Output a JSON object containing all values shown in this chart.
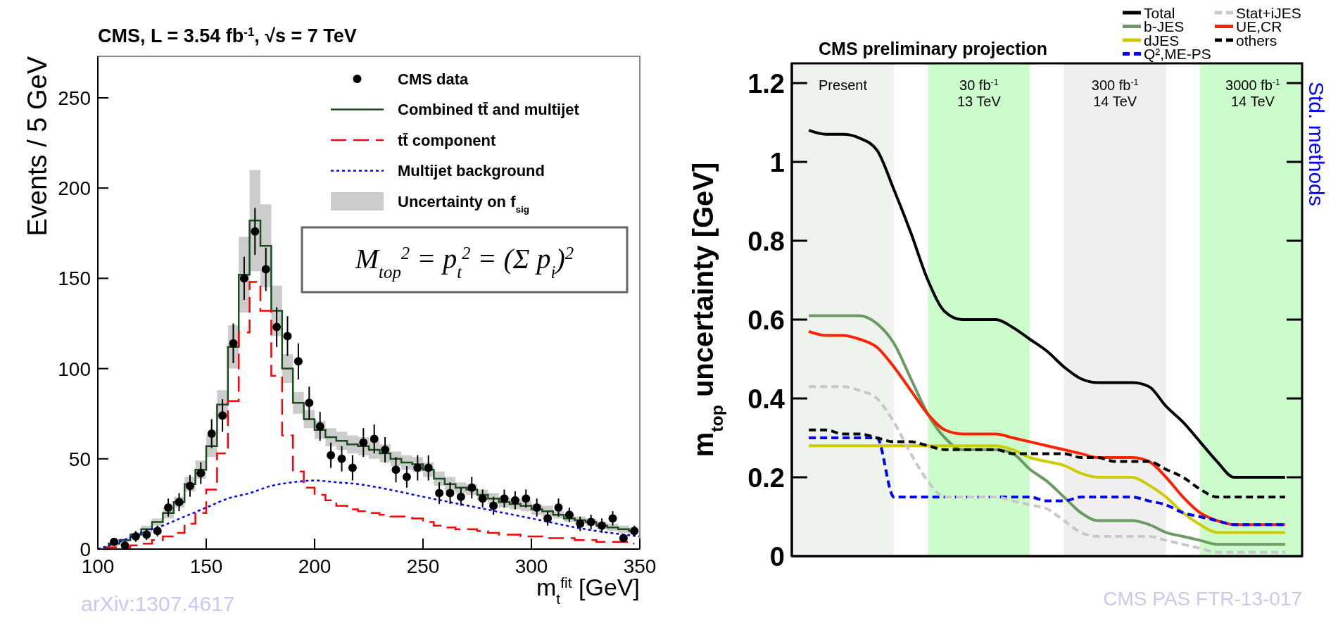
{
  "chart_data": [
    {
      "type": "scatter",
      "title": "CMS, L = 3.54 fb$^{-1}$, √s = 7 TeV",
      "xlabel": "m$_{t}$$^{fit}$ [GeV]",
      "ylabel": "Events / 5 GeV",
      "xlim": [
        100,
        350
      ],
      "xticks": [
        100,
        150,
        200,
        250,
        300,
        350
      ],
      "ylim": [
        0,
        273
      ],
      "yticks": [
        0,
        50,
        100,
        150,
        200,
        250
      ],
      "legend": "top right",
      "annotations": [
        "M$_{top}$$^{2}$ = p$_{t}$$^{2}$ = (Σ p$_{i}$)$^{2}$",
        "arXiv:1307.4617",
        "Uncertainty on f$_{sig}$"
      ],
      "series": [
        {
          "name": "CMS data",
          "color": "#000000",
          "marker": "circle",
          "x": [
            107.5,
            112.5,
            117.5,
            122.5,
            127.5,
            132.5,
            137.5,
            142.5,
            147.5,
            152.5,
            157.5,
            162.5,
            167.5,
            172.5,
            177.5,
            182.5,
            187.5,
            192.5,
            197.5,
            202.5,
            207.5,
            212.5,
            217.5,
            222.5,
            227.5,
            232.5,
            237.5,
            242.5,
            247.5,
            252.5,
            257.5,
            262.5,
            267.5,
            272.5,
            277.5,
            282.5,
            287.5,
            292.5,
            297.5,
            302.5,
            307.5,
            312.5,
            317.5,
            322.5,
            327.5,
            332.5,
            337.5,
            342.5,
            347.5
          ],
          "values": [
            4,
            2,
            7,
            8,
            10,
            23,
            26,
            35,
            42,
            64,
            74,
            114,
            150,
            176,
            155,
            123,
            118,
            104,
            81,
            68,
            52,
            50,
            45,
            59,
            61,
            55,
            44,
            40,
            45,
            45,
            31,
            31,
            29,
            34,
            28,
            24,
            28,
            27,
            28,
            23,
            17,
            23,
            19,
            14,
            15,
            13,
            17,
            6,
            10
          ],
          "errors": [
            2,
            1,
            3,
            3,
            3,
            5,
            5,
            6,
            6,
            8,
            9,
            11,
            12,
            13,
            12,
            11,
            11,
            10,
            9,
            8,
            7,
            7,
            7,
            8,
            8,
            7,
            7,
            6,
            7,
            7,
            6,
            6,
            5,
            6,
            5,
            5,
            5,
            5,
            5,
            5,
            4,
            5,
            4,
            4,
            4,
            4,
            4,
            2,
            3
          ]
        },
        {
          "name": "Combined tt̄ and multijet",
          "type": "step",
          "color": "#1a4d1a",
          "x": [
            102.5,
            107.5,
            112.5,
            117.5,
            122.5,
            127.5,
            132.5,
            137.5,
            142.5,
            147.5,
            152.5,
            157.5,
            162.5,
            167.5,
            172.5,
            177.5,
            182.5,
            187.5,
            192.5,
            197.5,
            202.5,
            207.5,
            212.5,
            217.5,
            222.5,
            227.5,
            232.5,
            237.5,
            242.5,
            247.5,
            252.5,
            257.5,
            262.5,
            267.5,
            272.5,
            277.5,
            282.5,
            287.5,
            292.5,
            297.5,
            302.5,
            307.5,
            312.5,
            317.5,
            322.5,
            327.5,
            332.5,
            337.5,
            342.5,
            347.5
          ],
          "values": [
            1,
            3,
            5,
            8,
            11,
            15,
            20,
            26,
            36,
            44,
            57,
            80,
            112,
            152,
            182,
            168,
            132,
            100,
            81,
            72,
            66,
            62,
            60,
            58,
            57,
            55,
            53,
            50,
            48,
            47,
            44,
            39,
            36,
            34,
            33,
            30,
            28,
            26,
            25,
            24,
            22,
            21,
            19,
            17,
            16,
            15,
            13,
            12,
            11,
            10
          ],
          "lower": [
            1,
            2,
            4,
            7,
            9,
            13,
            17,
            23,
            32,
            39,
            51,
            72,
            100,
            131,
            154,
            145,
            118,
            92,
            75,
            67,
            61,
            57,
            55,
            53,
            52,
            50,
            48,
            46,
            44,
            43,
            40,
            35,
            32,
            31,
            30,
            27,
            25,
            23,
            22,
            21,
            19,
            18,
            17,
            15,
            14,
            13,
            11,
            10,
            9,
            8
          ],
          "upper": [
            1,
            4,
            6,
            9,
            13,
            17,
            23,
            29,
            40,
            49,
            63,
            88,
            124,
            173,
            210,
            191,
            146,
            108,
            87,
            77,
            71,
            67,
            65,
            63,
            62,
            60,
            58,
            54,
            52,
            51,
            48,
            43,
            40,
            37,
            36,
            33,
            31,
            29,
            28,
            27,
            25,
            24,
            21,
            19,
            18,
            17,
            15,
            14,
            13,
            12
          ]
        },
        {
          "name": "tt̄ component",
          "type": "step",
          "color": "#ff0000",
          "line_style": "dashed",
          "x": [
            102.5,
            107.5,
            112.5,
            117.5,
            122.5,
            127.5,
            132.5,
            137.5,
            142.5,
            147.5,
            152.5,
            157.5,
            162.5,
            167.5,
            172.5,
            177.5,
            182.5,
            187.5,
            192.5,
            197.5,
            202.5,
            207.5,
            212.5,
            217.5,
            222.5,
            227.5,
            232.5,
            237.5,
            242.5,
            247.5,
            252.5,
            257.5,
            262.5,
            267.5,
            272.5,
            277.5,
            282.5,
            287.5,
            292.5,
            297.5,
            302.5,
            307.5,
            312.5,
            317.5,
            322.5,
            327.5,
            332.5,
            337.5,
            342.5,
            347.5
          ],
          "values": [
            0,
            1,
            1,
            2,
            3,
            5,
            7,
            9,
            14,
            20,
            33,
            53,
            82,
            120,
            148,
            132,
            96,
            63,
            43,
            34,
            30,
            27,
            24,
            22,
            21,
            20,
            19,
            18,
            18,
            17,
            15,
            13,
            12,
            11,
            11,
            10,
            9,
            8,
            8,
            7,
            7,
            6,
            6,
            6,
            5,
            5,
            4,
            4,
            4,
            3
          ]
        },
        {
          "name": "Multijet background",
          "type": "line",
          "color": "#0000ff",
          "line_style": "dotted",
          "x": [
            100,
            110,
            120,
            130,
            140,
            150,
            160,
            170,
            180,
            190,
            200,
            210,
            220,
            230,
            250,
            275,
            300,
            325,
            350
          ],
          "values": [
            0,
            4,
            9,
            13,
            18,
            23,
            28,
            31,
            35,
            37,
            38,
            37,
            36,
            34,
            29,
            23,
            17,
            11,
            7
          ]
        }
      ]
    },
    {
      "type": "line",
      "title": "CMS preliminary projection",
      "ylabel": "m$_{top}$ uncertainty [GeV]",
      "categories": [
        null,
        null,
        null,
        null,
        null,
        null,
        null,
        null,
        null,
        null,
        null,
        null,
        null,
        null,
        null,
        null,
        null,
        null,
        null,
        null,
        null,
        null,
        null,
        null,
        null,
        null,
        null,
        null,
        null
      ],
      "ylim": [
        0,
        1.25
      ],
      "yticks": [
        0,
        0.2,
        0.4,
        0.6,
        0.8,
        1,
        1.2
      ],
      "tick_labels": "y",
      "legend": "top right",
      "annotations": [
        "Std. methods",
        "CMS PAS FTR-13-017",
        "Present",
        "30 fb$^{-1}$\n13 TeV",
        "300 fb$^{-1}$\n14 TeV",
        "3000 fb$^{-1}$\n14 TeV"
      ],
      "series": [
        {
          "name": "Total",
          "color": "#000000",
          "values": [
            1.08,
            1.07,
            1.07,
            1.06,
            1.03,
            0.93,
            0.82,
            0.7,
            0.62,
            0.6,
            0.6,
            0.6,
            0.58,
            0.55,
            0.52,
            0.48,
            0.45,
            0.44,
            0.44,
            0.44,
            0.43,
            0.38,
            0.34,
            0.29,
            0.24,
            0.2,
            0.2,
            0.2,
            0.2
          ]
        },
        {
          "name": "b-JES",
          "color": "#6b9a63",
          "values": [
            0.61,
            0.61,
            0.61,
            0.61,
            0.59,
            0.54,
            0.45,
            0.36,
            0.3,
            0.27,
            0.27,
            0.27,
            0.26,
            0.22,
            0.19,
            0.15,
            0.11,
            0.09,
            0.09,
            0.09,
            0.08,
            0.06,
            0.05,
            0.04,
            0.03,
            0.03,
            0.03,
            0.03,
            0.03
          ]
        },
        {
          "name": "dJES",
          "color": "#cccc00",
          "values": [
            0.28,
            0.28,
            0.28,
            0.28,
            0.28,
            0.28,
            0.28,
            0.28,
            0.28,
            0.28,
            0.28,
            0.28,
            0.27,
            0.25,
            0.24,
            0.23,
            0.21,
            0.2,
            0.2,
            0.2,
            0.18,
            0.15,
            0.11,
            0.08,
            0.06,
            0.06,
            0.06,
            0.06,
            0.06
          ]
        },
        {
          "name": "Q²,ME-PS",
          "color": "#0000ff",
          "line_style": "dashed",
          "values": [
            0.3,
            0.3,
            0.3,
            0.3,
            0.3,
            0.15,
            0.15,
            0.15,
            0.15,
            0.15,
            0.15,
            0.15,
            0.15,
            0.15,
            0.14,
            0.14,
            0.15,
            0.15,
            0.15,
            0.15,
            0.14,
            0.13,
            0.11,
            0.1,
            0.09,
            0.08,
            0.08,
            0.08,
            0.08
          ]
        },
        {
          "name": "Stat+iJES",
          "color": "#c8c8c8",
          "line_style": "dashed",
          "values": [
            0.43,
            0.43,
            0.43,
            0.42,
            0.4,
            0.34,
            0.26,
            0.19,
            0.15,
            0.15,
            0.15,
            0.15,
            0.14,
            0.13,
            0.12,
            0.09,
            0.06,
            0.05,
            0.05,
            0.05,
            0.05,
            0.04,
            0.03,
            0.02,
            0.01,
            0.01,
            0.01,
            0.01,
            0.01
          ]
        },
        {
          "name": "UE,CR",
          "color": "#ff2200",
          "values": [
            0.57,
            0.56,
            0.56,
            0.55,
            0.53,
            0.48,
            0.42,
            0.36,
            0.32,
            0.31,
            0.31,
            0.31,
            0.3,
            0.29,
            0.28,
            0.27,
            0.26,
            0.25,
            0.25,
            0.25,
            0.24,
            0.2,
            0.15,
            0.11,
            0.09,
            0.08,
            0.08,
            0.08,
            0.08
          ]
        },
        {
          "name": "others",
          "color": "#000000",
          "line_style": "dashed",
          "values": [
            0.32,
            0.32,
            0.31,
            0.31,
            0.3,
            0.29,
            0.29,
            0.28,
            0.27,
            0.27,
            0.27,
            0.27,
            0.26,
            0.26,
            0.26,
            0.26,
            0.25,
            0.25,
            0.24,
            0.24,
            0.24,
            0.22,
            0.2,
            0.17,
            0.15,
            0.15,
            0.15,
            0.15,
            0.15
          ]
        }
      ]
    }
  ]
}
